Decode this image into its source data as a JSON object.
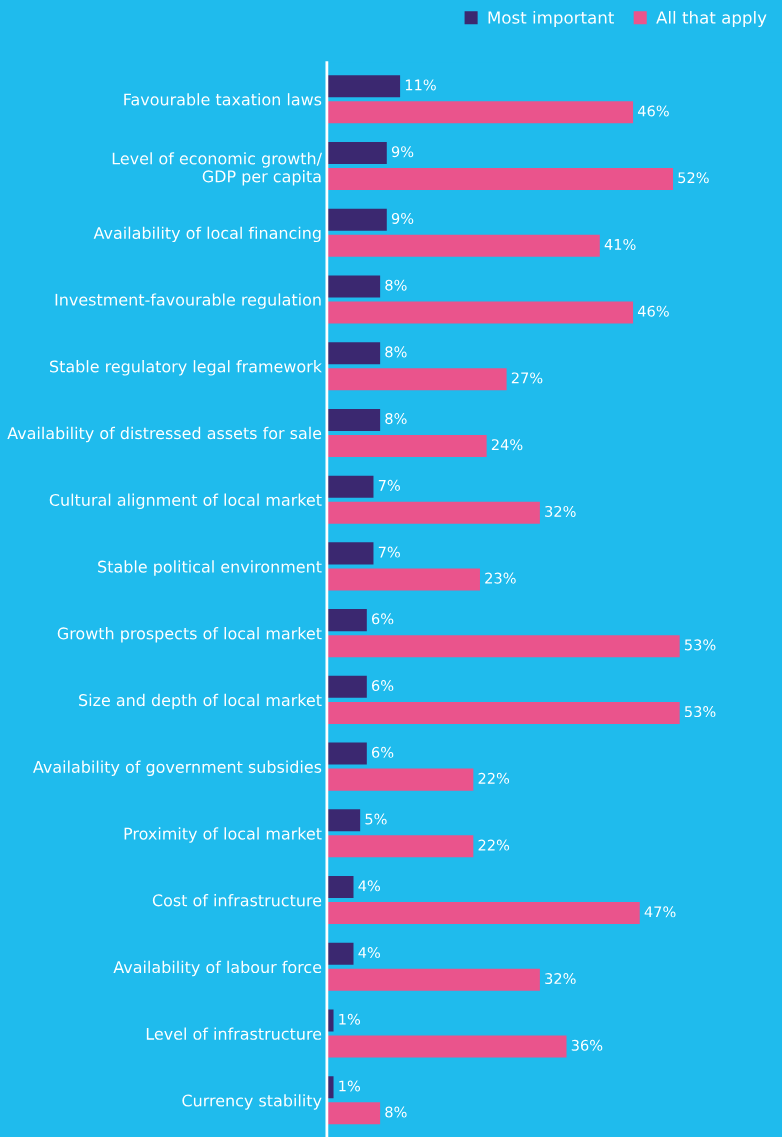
{
  "chart_data": {
    "type": "bar",
    "orientation": "horizontal",
    "legend": "top right",
    "tick_labels": "y",
    "categories": [
      "Favourable taxation laws",
      "Level of economic growth/\nGDP per capita",
      "Availability of local financing",
      "Investment-favourable regulation",
      "Stable regulatory legal framework",
      "Availability of distressed assets for sale",
      "Cultural alignment of local market",
      "Stable political environment",
      "Growth prospects of local market",
      "Size and depth of local market",
      "Availability of government subsidies",
      "Proximity of local market",
      "Cost of infrastructure",
      "Availability of labour force",
      "Level of infrastructure",
      "Currency stability"
    ],
    "series": [
      {
        "name": "Most important",
        "color": "#3b2870",
        "values": [
          11,
          9,
          9,
          8,
          8,
          8,
          7,
          7,
          6,
          6,
          6,
          5,
          4,
          4,
          1,
          1
        ],
        "value_labels": [
          "11%",
          "9%",
          "9%",
          "8%",
          "8%",
          "8%",
          "7%",
          "7%",
          "6%",
          "6%",
          "6%",
          "5%",
          "4%",
          "4%",
          "1%",
          "1%"
        ]
      },
      {
        "name": "All that apply",
        "color": "#ea548c",
        "values": [
          46,
          52,
          41,
          46,
          27,
          24,
          32,
          23,
          53,
          53,
          22,
          22,
          47,
          32,
          36,
          8
        ],
        "value_labels": [
          "46%",
          "52%",
          "41%",
          "46%",
          "27%",
          "24%",
          "32%",
          "23%",
          "53%",
          "53%",
          "22%",
          "22%",
          "47%",
          "32%",
          "36%",
          "8%"
        ]
      }
    ]
  }
}
